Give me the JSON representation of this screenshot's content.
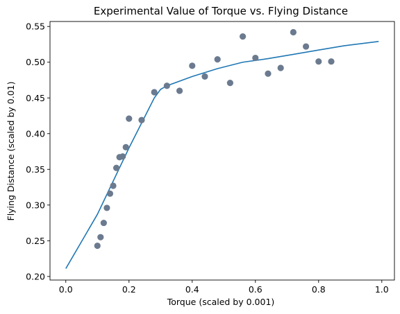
{
  "chart_data": {
    "type": "scatter",
    "title": "Experimental Value of Torque vs. Flying Distance",
    "xlabel": "Torque (scaled by 0.001)",
    "ylabel": "Flying Distance (scaled by 0.01)",
    "xlim": [
      -0.05,
      1.04
    ],
    "ylim": [
      0.195,
      0.557
    ],
    "xticks": [
      0.0,
      0.2,
      0.4,
      0.6,
      0.8,
      1.0
    ],
    "xtick_labels": [
      "0.0",
      "0.2",
      "0.4",
      "0.6",
      "0.8",
      "1.0"
    ],
    "yticks": [
      0.2,
      0.25,
      0.3,
      0.35,
      0.4,
      0.45,
      0.5,
      0.55
    ],
    "ytick_labels": [
      "0.20",
      "0.25",
      "0.30",
      "0.35",
      "0.40",
      "0.45",
      "0.50",
      "0.55"
    ],
    "grid": false,
    "series": [
      {
        "type": "scatter",
        "color": "#6b7a8f",
        "points": [
          [
            0.1,
            0.243
          ],
          [
            0.11,
            0.255
          ],
          [
            0.12,
            0.275
          ],
          [
            0.13,
            0.296
          ],
          [
            0.14,
            0.316
          ],
          [
            0.15,
            0.327
          ],
          [
            0.16,
            0.352
          ],
          [
            0.17,
            0.367
          ],
          [
            0.18,
            0.368
          ],
          [
            0.19,
            0.381
          ],
          [
            0.2,
            0.421
          ],
          [
            0.24,
            0.419
          ],
          [
            0.28,
            0.458
          ],
          [
            0.32,
            0.467
          ],
          [
            0.36,
            0.46
          ],
          [
            0.4,
            0.495
          ],
          [
            0.44,
            0.48
          ],
          [
            0.48,
            0.504
          ],
          [
            0.52,
            0.471
          ],
          [
            0.56,
            0.536
          ],
          [
            0.6,
            0.506
          ],
          [
            0.64,
            0.484
          ],
          [
            0.68,
            0.492
          ],
          [
            0.72,
            0.542
          ],
          [
            0.76,
            0.522
          ],
          [
            0.8,
            0.501
          ],
          [
            0.84,
            0.501
          ]
        ]
      },
      {
        "type": "line",
        "color": "#1f77b4",
        "points": [
          [
            0.0,
            0.211
          ],
          [
            0.1,
            0.287
          ],
          [
            0.2,
            0.38
          ],
          [
            0.28,
            0.45
          ],
          [
            0.3,
            0.462
          ],
          [
            0.32,
            0.467
          ],
          [
            0.4,
            0.48
          ],
          [
            0.48,
            0.491
          ],
          [
            0.56,
            0.5
          ],
          [
            0.64,
            0.505
          ],
          [
            0.72,
            0.511
          ],
          [
            0.8,
            0.517
          ],
          [
            0.88,
            0.523
          ],
          [
            0.99,
            0.529
          ]
        ]
      }
    ]
  }
}
